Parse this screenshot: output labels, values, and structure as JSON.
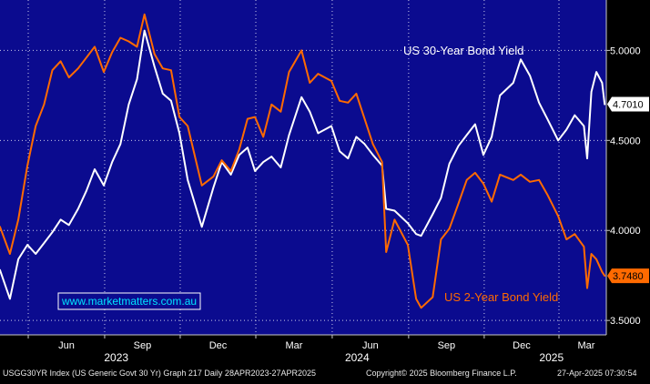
{
  "chart_data": {
    "type": "line",
    "background_color": "#0b0b8f",
    "grid": true,
    "ylim": [
      3.42,
      5.28
    ],
    "y_ticks": [
      {
        "value": 3.5,
        "label": "3.5000"
      },
      {
        "value": 4.0,
        "label": "4.0000"
      },
      {
        "value": 4.5,
        "label": "4.5000"
      },
      {
        "value": 5.0,
        "label": "5.0000"
      }
    ],
    "x_start": "2023-04-28",
    "x_end": "2025-04-27",
    "month_ticks": [
      {
        "date": "2023-06-01",
        "label": "Jun"
      },
      {
        "date": "2023-09-01",
        "label": "Sep"
      },
      {
        "date": "2023-12-01",
        "label": "Dec"
      },
      {
        "date": "2024-03-01",
        "label": "Mar"
      },
      {
        "date": "2024-06-01",
        "label": "Jun"
      },
      {
        "date": "2024-09-01",
        "label": "Sep"
      },
      {
        "date": "2024-12-01",
        "label": "Dec"
      },
      {
        "date": "2025-03-01",
        "label": "Mar"
      }
    ],
    "year_labels": [
      {
        "date": "2023-09-15",
        "label": "2023"
      },
      {
        "date": "2024-07-01",
        "label": "2024"
      },
      {
        "date": "2025-02-20",
        "label": "2025"
      }
    ],
    "series": [
      {
        "name": "US 30-Year Bond Yield",
        "color": "#ffffff",
        "last_value_label": "4.7010",
        "last_value": 4.701,
        "x": [
          "2023-04-28",
          "2023-05-10",
          "2023-05-20",
          "2023-05-31",
          "2023-06-10",
          "2023-06-20",
          "2023-06-30",
          "2023-07-10",
          "2023-07-20",
          "2023-07-31",
          "2023-08-10",
          "2023-08-20",
          "2023-08-31",
          "2023-09-10",
          "2023-09-20",
          "2023-09-30",
          "2023-10-10",
          "2023-10-19",
          "2023-10-31",
          "2023-11-10",
          "2023-11-20",
          "2023-11-30",
          "2023-12-10",
          "2023-12-27",
          "2024-01-10",
          "2024-01-20",
          "2024-01-31",
          "2024-02-10",
          "2024-02-20",
          "2024-02-29",
          "2024-03-10",
          "2024-03-20",
          "2024-03-31",
          "2024-04-10",
          "2024-04-25",
          "2024-05-05",
          "2024-05-15",
          "2024-05-31",
          "2024-06-10",
          "2024-06-20",
          "2024-06-30",
          "2024-07-10",
          "2024-07-20",
          "2024-07-31",
          "2024-08-05",
          "2024-08-15",
          "2024-08-31",
          "2024-09-10",
          "2024-09-16",
          "2024-09-30",
          "2024-10-10",
          "2024-10-20",
          "2024-10-31",
          "2024-11-10",
          "2024-11-20",
          "2024-11-30",
          "2024-12-10",
          "2024-12-20",
          "2025-01-05",
          "2025-01-14",
          "2025-01-25",
          "2025-02-05",
          "2025-02-15",
          "2025-02-28",
          "2025-03-10",
          "2025-03-20",
          "2025-03-31",
          "2025-04-04",
          "2025-04-09",
          "2025-04-15",
          "2025-04-22",
          "2025-04-25"
        ],
        "y": [
          3.78,
          3.62,
          3.84,
          3.92,
          3.87,
          3.93,
          3.99,
          4.06,
          4.03,
          4.12,
          4.22,
          4.34,
          4.25,
          4.38,
          4.48,
          4.7,
          4.84,
          5.11,
          4.91,
          4.76,
          4.72,
          4.54,
          4.28,
          4.02,
          4.24,
          4.38,
          4.31,
          4.42,
          4.46,
          4.33,
          4.38,
          4.41,
          4.35,
          4.53,
          4.74,
          4.66,
          4.54,
          4.58,
          4.44,
          4.4,
          4.52,
          4.48,
          4.42,
          4.36,
          4.12,
          4.11,
          4.04,
          3.98,
          3.97,
          4.09,
          4.18,
          4.37,
          4.47,
          4.53,
          4.59,
          4.42,
          4.52,
          4.75,
          4.82,
          4.95,
          4.86,
          4.71,
          4.62,
          4.5,
          4.56,
          4.64,
          4.58,
          4.4,
          4.77,
          4.88,
          4.82,
          4.701
        ]
      },
      {
        "name": "US 2-Year Bond Yield",
        "color": "#ff6a00",
        "last_value_label": "3.7480",
        "last_value": 3.748,
        "x": [
          "2023-04-28",
          "2023-05-10",
          "2023-05-20",
          "2023-05-31",
          "2023-06-10",
          "2023-06-20",
          "2023-06-30",
          "2023-07-10",
          "2023-07-20",
          "2023-07-31",
          "2023-08-10",
          "2023-08-20",
          "2023-08-31",
          "2023-09-10",
          "2023-09-20",
          "2023-09-30",
          "2023-10-10",
          "2023-10-19",
          "2023-10-31",
          "2023-11-10",
          "2023-11-20",
          "2023-11-30",
          "2023-12-10",
          "2023-12-27",
          "2024-01-10",
          "2024-01-20",
          "2024-01-31",
          "2024-02-10",
          "2024-02-20",
          "2024-02-29",
          "2024-03-10",
          "2024-03-20",
          "2024-03-31",
          "2024-04-10",
          "2024-04-25",
          "2024-05-05",
          "2024-05-15",
          "2024-05-31",
          "2024-06-10",
          "2024-06-20",
          "2024-06-30",
          "2024-07-10",
          "2024-07-20",
          "2024-07-31",
          "2024-08-05",
          "2024-08-15",
          "2024-08-31",
          "2024-09-10",
          "2024-09-16",
          "2024-09-30",
          "2024-10-10",
          "2024-10-20",
          "2024-10-31",
          "2024-11-10",
          "2024-11-20",
          "2024-11-30",
          "2024-12-10",
          "2024-12-20",
          "2025-01-05",
          "2025-01-14",
          "2025-01-25",
          "2025-02-05",
          "2025-02-15",
          "2025-02-28",
          "2025-03-10",
          "2025-03-20",
          "2025-03-31",
          "2025-04-04",
          "2025-04-09",
          "2025-04-15",
          "2025-04-22",
          "2025-04-25"
        ],
        "y": [
          4.02,
          3.87,
          4.06,
          4.36,
          4.58,
          4.7,
          4.89,
          4.94,
          4.85,
          4.9,
          4.96,
          5.02,
          4.88,
          4.99,
          5.07,
          5.05,
          5.02,
          5.2,
          4.98,
          4.9,
          4.89,
          4.63,
          4.58,
          4.25,
          4.3,
          4.39,
          4.33,
          4.45,
          4.62,
          4.63,
          4.52,
          4.7,
          4.66,
          4.88,
          5.0,
          4.82,
          4.87,
          4.83,
          4.72,
          4.71,
          4.76,
          4.62,
          4.48,
          4.38,
          3.88,
          4.06,
          3.92,
          3.62,
          3.57,
          3.63,
          3.95,
          4.01,
          4.15,
          4.28,
          4.32,
          4.26,
          4.16,
          4.31,
          4.28,
          4.31,
          4.27,
          4.28,
          4.2,
          4.08,
          3.95,
          3.98,
          3.91,
          3.68,
          3.87,
          3.84,
          3.77,
          3.748
        ]
      }
    ],
    "annotations": [
      {
        "text": "US 30-Year Bond Yield",
        "color": "#ffffff"
      },
      {
        "text": "US 2-Year Bond Yield",
        "color": "#ff6a00"
      }
    ]
  },
  "watermark": {
    "text": "www.marketmatters.com.au",
    "color": "#00e5ff"
  },
  "footer": {
    "left": "USGG30YR Index (US Generic Govt 30 Yr) Graph 217  Daily 28APR2023-27APR2025",
    "center": "Copyright© 2025 Bloomberg Finance L.P.",
    "right": "27-Apr-2025 07:30:54"
  }
}
